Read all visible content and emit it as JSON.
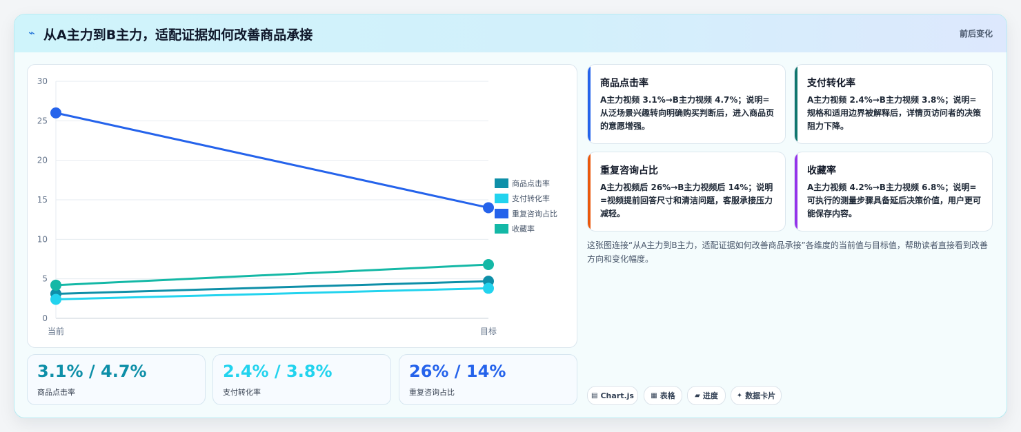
{
  "header": {
    "title": "从A主力到B主力，适配证据如何改善商品承接",
    "tag": "前后变化",
    "icon": "bolt-icon"
  },
  "chart_data": {
    "type": "line",
    "x": [
      "当前",
      "目标"
    ],
    "ylim": [
      0,
      30
    ],
    "yticks": [
      0,
      5,
      10,
      15,
      20,
      25,
      30
    ],
    "grid": true,
    "legend_position": "right",
    "series": [
      {
        "name": "商品点击率",
        "values": [
          3.1,
          4.7
        ],
        "color": "#0e8fa8"
      },
      {
        "name": "支付转化率",
        "values": [
          2.4,
          3.8
        ],
        "color": "#22d3ee"
      },
      {
        "name": "重复咨询占比",
        "values": [
          26,
          14
        ],
        "color": "#2563eb"
      },
      {
        "name": "收藏率",
        "values": [
          4.2,
          6.8
        ],
        "color": "#14b8a6"
      }
    ]
  },
  "stats": [
    {
      "value": "3.1% / 4.7%",
      "label": "商品点击率",
      "color": "#0e8fa8"
    },
    {
      "value": "2.4% / 3.8%",
      "label": "支付转化率",
      "color": "#22d3ee"
    },
    {
      "value": "26% / 14%",
      "label": "重复咨询占比",
      "color": "#2563eb"
    }
  ],
  "insights": [
    {
      "title": "商品点击率",
      "text": "A主力视频 3.1%→B主力视频 4.7%；说明=从泛场景兴趣转向明确购买判断后，进入商品页的意愿增强。",
      "color": "#2563eb"
    },
    {
      "title": "支付转化率",
      "text": "A主力视频 2.4%→B主力视频 3.8%；说明=规格和适用边界被解释后，详情页访问者的决策阻力下降。",
      "color": "#0f766e"
    },
    {
      "title": "重复咨询占比",
      "text": "A主力视频后 26%→B主力视频后 14%；说明=视频提前回答尺寸和清洁问题，客服承接压力减轻。",
      "color": "#ea580c"
    },
    {
      "title": "收藏率",
      "text": "A主力视频 4.2%→B主力视频 6.8%；说明=可执行的测量步骤具备延后决策价值，用户更可能保存内容。",
      "color": "#9333ea"
    }
  ],
  "caption": "这张图连接“从A主力到B主力，适配证据如何改善商品承接”各维度的当前值与目标值，帮助读者直接看到改善方向和变化幅度。",
  "chips": [
    {
      "icon": "▤",
      "label": "Chart.js"
    },
    {
      "icon": "▦",
      "label": "表格"
    },
    {
      "icon": "▰",
      "label": "进度"
    },
    {
      "icon": "✦",
      "label": "数据卡片"
    }
  ]
}
